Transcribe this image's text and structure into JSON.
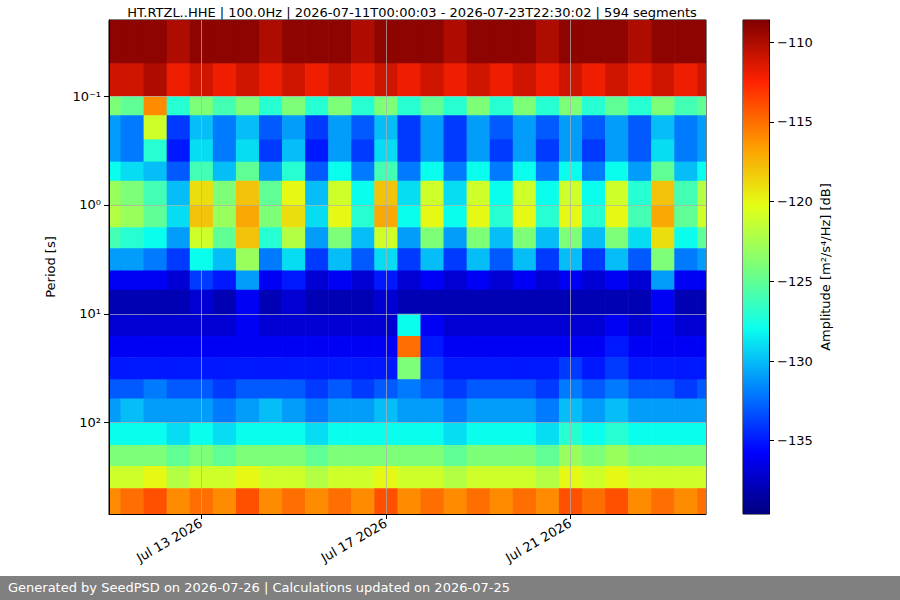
{
  "chart_data": {
    "type": "heatmap",
    "title": "HT.RTZL..HHE | 100.0Hz | 2026-07-11T00:00:03 - 2026-07-23T22:30:02 | 594 segments",
    "footer": "Generated by SeedPSD on 2026-07-26 | Calculations updated on 2026-07-25",
    "y_label": "Period [s]",
    "colorbar_label": "Amplitude [m²/s⁴/Hz] [dB]",
    "log": "y",
    "grid": true,
    "xlim": [
      "2026-07-11T00:00:03",
      "2026-07-23T22:30:02"
    ],
    "xticks": [
      {
        "value": "2026-07-13T00:00:00",
        "label": "Jul 13 2026"
      },
      {
        "value": "2026-07-17T00:00:00",
        "label": "Jul 17 2026"
      },
      {
        "value": "2026-07-21T00:00:00",
        "label": "Jul 21 2026"
      }
    ],
    "ylim": [
      0.02,
      690
    ],
    "yticks": [
      {
        "value": 0.1,
        "label": "10⁻¹"
      },
      {
        "value": 1,
        "label": "10⁰"
      },
      {
        "value": 10,
        "label": "10¹"
      },
      {
        "value": 100,
        "label": "10²"
      }
    ],
    "time_edges": [
      "2026-07-11T00:00:03",
      "2026-07-11T06:00:00",
      "2026-07-11T18:00:00",
      "2026-07-12T06:00:00",
      "2026-07-12T18:00:00",
      "2026-07-13T06:00:00",
      "2026-07-13T18:00:00",
      "2026-07-14T06:00:00",
      "2026-07-14T18:00:00",
      "2026-07-15T06:00:00",
      "2026-07-15T18:00:00",
      "2026-07-16T06:00:00",
      "2026-07-16T18:00:00",
      "2026-07-17T06:00:00",
      "2026-07-17T18:00:00",
      "2026-07-18T06:00:00",
      "2026-07-18T18:00:00",
      "2026-07-19T06:00:00",
      "2026-07-19T18:00:00",
      "2026-07-20T06:00:00",
      "2026-07-20T18:00:00",
      "2026-07-21T06:00:00",
      "2026-07-21T18:00:00",
      "2026-07-22T06:00:00",
      "2026-07-22T18:00:00",
      "2026-07-23T06:00:00",
      "2026-07-23T18:00:00",
      "2026-07-23T22:30:02"
    ],
    "period_edges": [
      0.02,
      0.05,
      0.1,
      0.15,
      0.25,
      0.4,
      0.6,
      1,
      1.6,
      2.5,
      4,
      6,
      10,
      16,
      25,
      40,
      60,
      100,
      160,
      250,
      400,
      690
    ],
    "cells": [
      [
        -109,
        -109,
        -109,
        -110,
        -109,
        -109,
        -109,
        -110,
        -109,
        -109,
        -109,
        -110,
        -109,
        -109,
        -109,
        -110,
        -109,
        -109,
        -109,
        -110,
        -109,
        -109,
        -109,
        -110,
        -109,
        -109,
        -109
      ],
      [
        -111,
        -111,
        -110,
        -112,
        -111,
        -112,
        -111,
        -112,
        -111,
        -112,
        -111,
        -112,
        -111,
        -112,
        -111,
        -112,
        -111,
        -112,
        -111,
        -112,
        -111,
        -112,
        -111,
        -112,
        -111,
        -112,
        -111
      ],
      [
        -124,
        -125,
        -116,
        -127,
        -124,
        -126,
        -124,
        -127,
        -124,
        -127,
        -124,
        -127,
        -124,
        -127,
        -125,
        -127,
        -124,
        -127,
        -124,
        -127,
        -124,
        -127,
        -125,
        -127,
        -124,
        -126,
        -125
      ],
      [
        -131,
        -132,
        -121,
        -134,
        -130,
        -132,
        -130,
        -133,
        -131,
        -134,
        -131,
        -133,
        -130,
        -134,
        -131,
        -134,
        -131,
        -133,
        -131,
        -133,
        -131,
        -133,
        -131,
        -133,
        -130,
        -132,
        -131
      ],
      [
        -131,
        -132,
        -127,
        -135,
        -129,
        -132,
        -129,
        -134,
        -130,
        -135,
        -131,
        -134,
        -129,
        -134,
        -131,
        -134,
        -131,
        -134,
        -131,
        -134,
        -131,
        -134,
        -131,
        -133,
        -129,
        -132,
        -131
      ],
      [
        -128,
        -129,
        -130,
        -133,
        -126,
        -130,
        -125,
        -131,
        -127,
        -133,
        -128,
        -132,
        -126,
        -132,
        -128,
        -132,
        -128,
        -132,
        -128,
        -132,
        -128,
        -132,
        -128,
        -131,
        -125,
        -130,
        -128
      ],
      [
        -123,
        -124,
        -126,
        -130,
        -119,
        -124,
        -118,
        -125,
        -120,
        -130,
        -121,
        -128,
        -118,
        -129,
        -121,
        -129,
        -121,
        -128,
        -121,
        -128,
        -121,
        -128,
        -121,
        -127,
        -118,
        -126,
        -122
      ],
      [
        -122,
        -123,
        -125,
        -129,
        -118,
        -123,
        -117,
        -124,
        -119,
        -129,
        -120,
        -127,
        -117,
        -128,
        -120,
        -128,
        -120,
        -127,
        -120,
        -127,
        -120,
        -127,
        -120,
        -126,
        -117,
        -125,
        -121
      ],
      [
        -126,
        -127,
        -128,
        -131,
        -121,
        -125,
        -118,
        -127,
        -122,
        -131,
        -124,
        -130,
        -121,
        -131,
        -124,
        -131,
        -124,
        -130,
        -124,
        -130,
        -124,
        -130,
        -124,
        -129,
        -119,
        -128,
        -125
      ],
      [
        -131,
        -131,
        -132,
        -134,
        -128,
        -130,
        -123,
        -132,
        -129,
        -134,
        -130,
        -133,
        -129,
        -134,
        -130,
        -134,
        -130,
        -133,
        -130,
        -134,
        -130,
        -134,
        -130,
        -133,
        -124,
        -132,
        -131
      ],
      [
        -136,
        -136,
        -136,
        -137,
        -134,
        -135,
        -131,
        -136,
        -135,
        -137,
        -136,
        -137,
        -135,
        -137,
        -136,
        -137,
        -136,
        -137,
        -136,
        -137,
        -136,
        -137,
        -136,
        -137,
        -131,
        -136,
        -136
      ],
      [
        -138,
        -138,
        -138,
        -138,
        -137,
        -138,
        -136,
        -138,
        -137,
        -138,
        -138,
        -138,
        -137,
        -138,
        -138,
        -138,
        -138,
        -138,
        -138,
        -138,
        -138,
        -138,
        -138,
        -138,
        -136,
        -138,
        -138
      ],
      [
        -137,
        -137,
        -137,
        -137,
        -137,
        -137,
        -136,
        -137,
        -137,
        -137,
        -137,
        -137,
        -137,
        -128,
        -136,
        -137,
        -137,
        -137,
        -137,
        -137,
        -137,
        -137,
        -136,
        -137,
        -136,
        -137,
        -137
      ],
      [
        -136,
        -136,
        -136,
        -136,
        -136,
        -136,
        -136,
        -136,
        -136,
        -136,
        -136,
        -136,
        -136,
        -115,
        -135,
        -136,
        -136,
        -136,
        -136,
        -136,
        -136,
        -136,
        -135,
        -136,
        -136,
        -136,
        -136
      ],
      [
        -135,
        -135,
        -135,
        -135,
        -135,
        -135,
        -135,
        -135,
        -135,
        -135,
        -135,
        -135,
        -135,
        -124,
        -134,
        -135,
        -135,
        -135,
        -135,
        -135,
        -134,
        -135,
        -134,
        -135,
        -135,
        -135,
        -135
      ],
      [
        -133,
        -133,
        -132,
        -133,
        -133,
        -134,
        -133,
        -133,
        -133,
        -134,
        -133,
        -134,
        -133,
        -132,
        -133,
        -134,
        -133,
        -133,
        -133,
        -134,
        -132,
        -133,
        -132,
        -133,
        -133,
        -134,
        -133
      ],
      [
        -131,
        -130,
        -131,
        -131,
        -131,
        -132,
        -131,
        -130,
        -131,
        -132,
        -131,
        -131,
        -130,
        -131,
        -131,
        -132,
        -131,
        -131,
        -131,
        -132,
        -130,
        -131,
        -130,
        -131,
        -131,
        -131,
        -131
      ],
      [
        -128,
        -128,
        -128,
        -129,
        -128,
        -129,
        -128,
        -128,
        -128,
        -129,
        -128,
        -128,
        -128,
        -128,
        -128,
        -129,
        -128,
        -128,
        -128,
        -129,
        -127,
        -128,
        -127,
        -128,
        -128,
        -128,
        -128
      ],
      [
        -124,
        -124,
        -124,
        -125,
        -124,
        -125,
        -124,
        -124,
        -124,
        -125,
        -124,
        -124,
        -124,
        -124,
        -124,
        -125,
        -124,
        -124,
        -124,
        -125,
        -123,
        -124,
        -123,
        -124,
        -124,
        -124,
        -124
      ],
      [
        -121,
        -121,
        -120,
        -122,
        -121,
        -121,
        -120,
        -121,
        -121,
        -122,
        -121,
        -121,
        -120,
        -121,
        -121,
        -122,
        -121,
        -121,
        -121,
        -122,
        -120,
        -121,
        -120,
        -121,
        -121,
        -121,
        -121
      ],
      [
        -116,
        -115,
        -114,
        -116,
        -115,
        -116,
        -114,
        -116,
        -115,
        -116,
        -115,
        -116,
        -114,
        -116,
        -115,
        -116,
        -115,
        -116,
        -115,
        -116,
        -114,
        -115,
        -114,
        -116,
        -115,
        -116,
        -115
      ]
    ],
    "colorbar_range": [
      -139.6,
      -108.6
    ],
    "colorbar_ticks": [
      {
        "value": -135,
        "label": "−135"
      },
      {
        "value": -130,
        "label": "−130"
      },
      {
        "value": -125,
        "label": "−125"
      },
      {
        "value": -120,
        "label": "−120"
      },
      {
        "value": -115,
        "label": "−115"
      },
      {
        "value": -110,
        "label": "−110"
      }
    ]
  }
}
